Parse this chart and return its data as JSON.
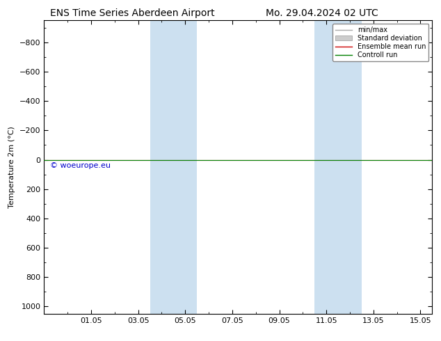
{
  "title_left": "ENS Time Series Aberdeen Airport",
  "title_right": "Mo. 29.04.2024 02 UTC",
  "ylabel": "Temperature 2m (°C)",
  "watermark": "© woeurope.eu",
  "ylim_top": -950,
  "ylim_bottom": 1050,
  "yticks": [
    -800,
    -600,
    -400,
    -200,
    0,
    200,
    400,
    600,
    800,
    1000
  ],
  "xtick_labels": [
    "01.05",
    "03.05",
    "05.05",
    "07.05",
    "09.05",
    "11.05",
    "13.05",
    "15.05"
  ],
  "xtick_positions": [
    2,
    4,
    6,
    8,
    10,
    12,
    14,
    16
  ],
  "xlim_left": 0,
  "xlim_right": 16.5,
  "shaded_regions": [
    {
      "x_start": 4.5,
      "x_end": 5.5
    },
    {
      "x_start": 5.5,
      "x_end": 6.5
    },
    {
      "x_start": 11.5,
      "x_end": 12.5
    },
    {
      "x_start": 12.5,
      "x_end": 13.5
    }
  ],
  "shaded_color": "#cce0f0",
  "green_line_y": 0,
  "red_line_y": 0,
  "legend_entries": [
    "min/max",
    "Standard deviation",
    "Ensemble mean run",
    "Controll run"
  ],
  "legend_line_colors": [
    "#aaaaaa",
    "#cccccc",
    "#cc0000",
    "#008000"
  ],
  "background_color": "#ffffff",
  "plot_bg_color": "#ffffff",
  "title_fontsize": 10,
  "axis_fontsize": 8,
  "tick_fontsize": 8,
  "watermark_color": "#0000cc",
  "watermark_fontsize": 8
}
